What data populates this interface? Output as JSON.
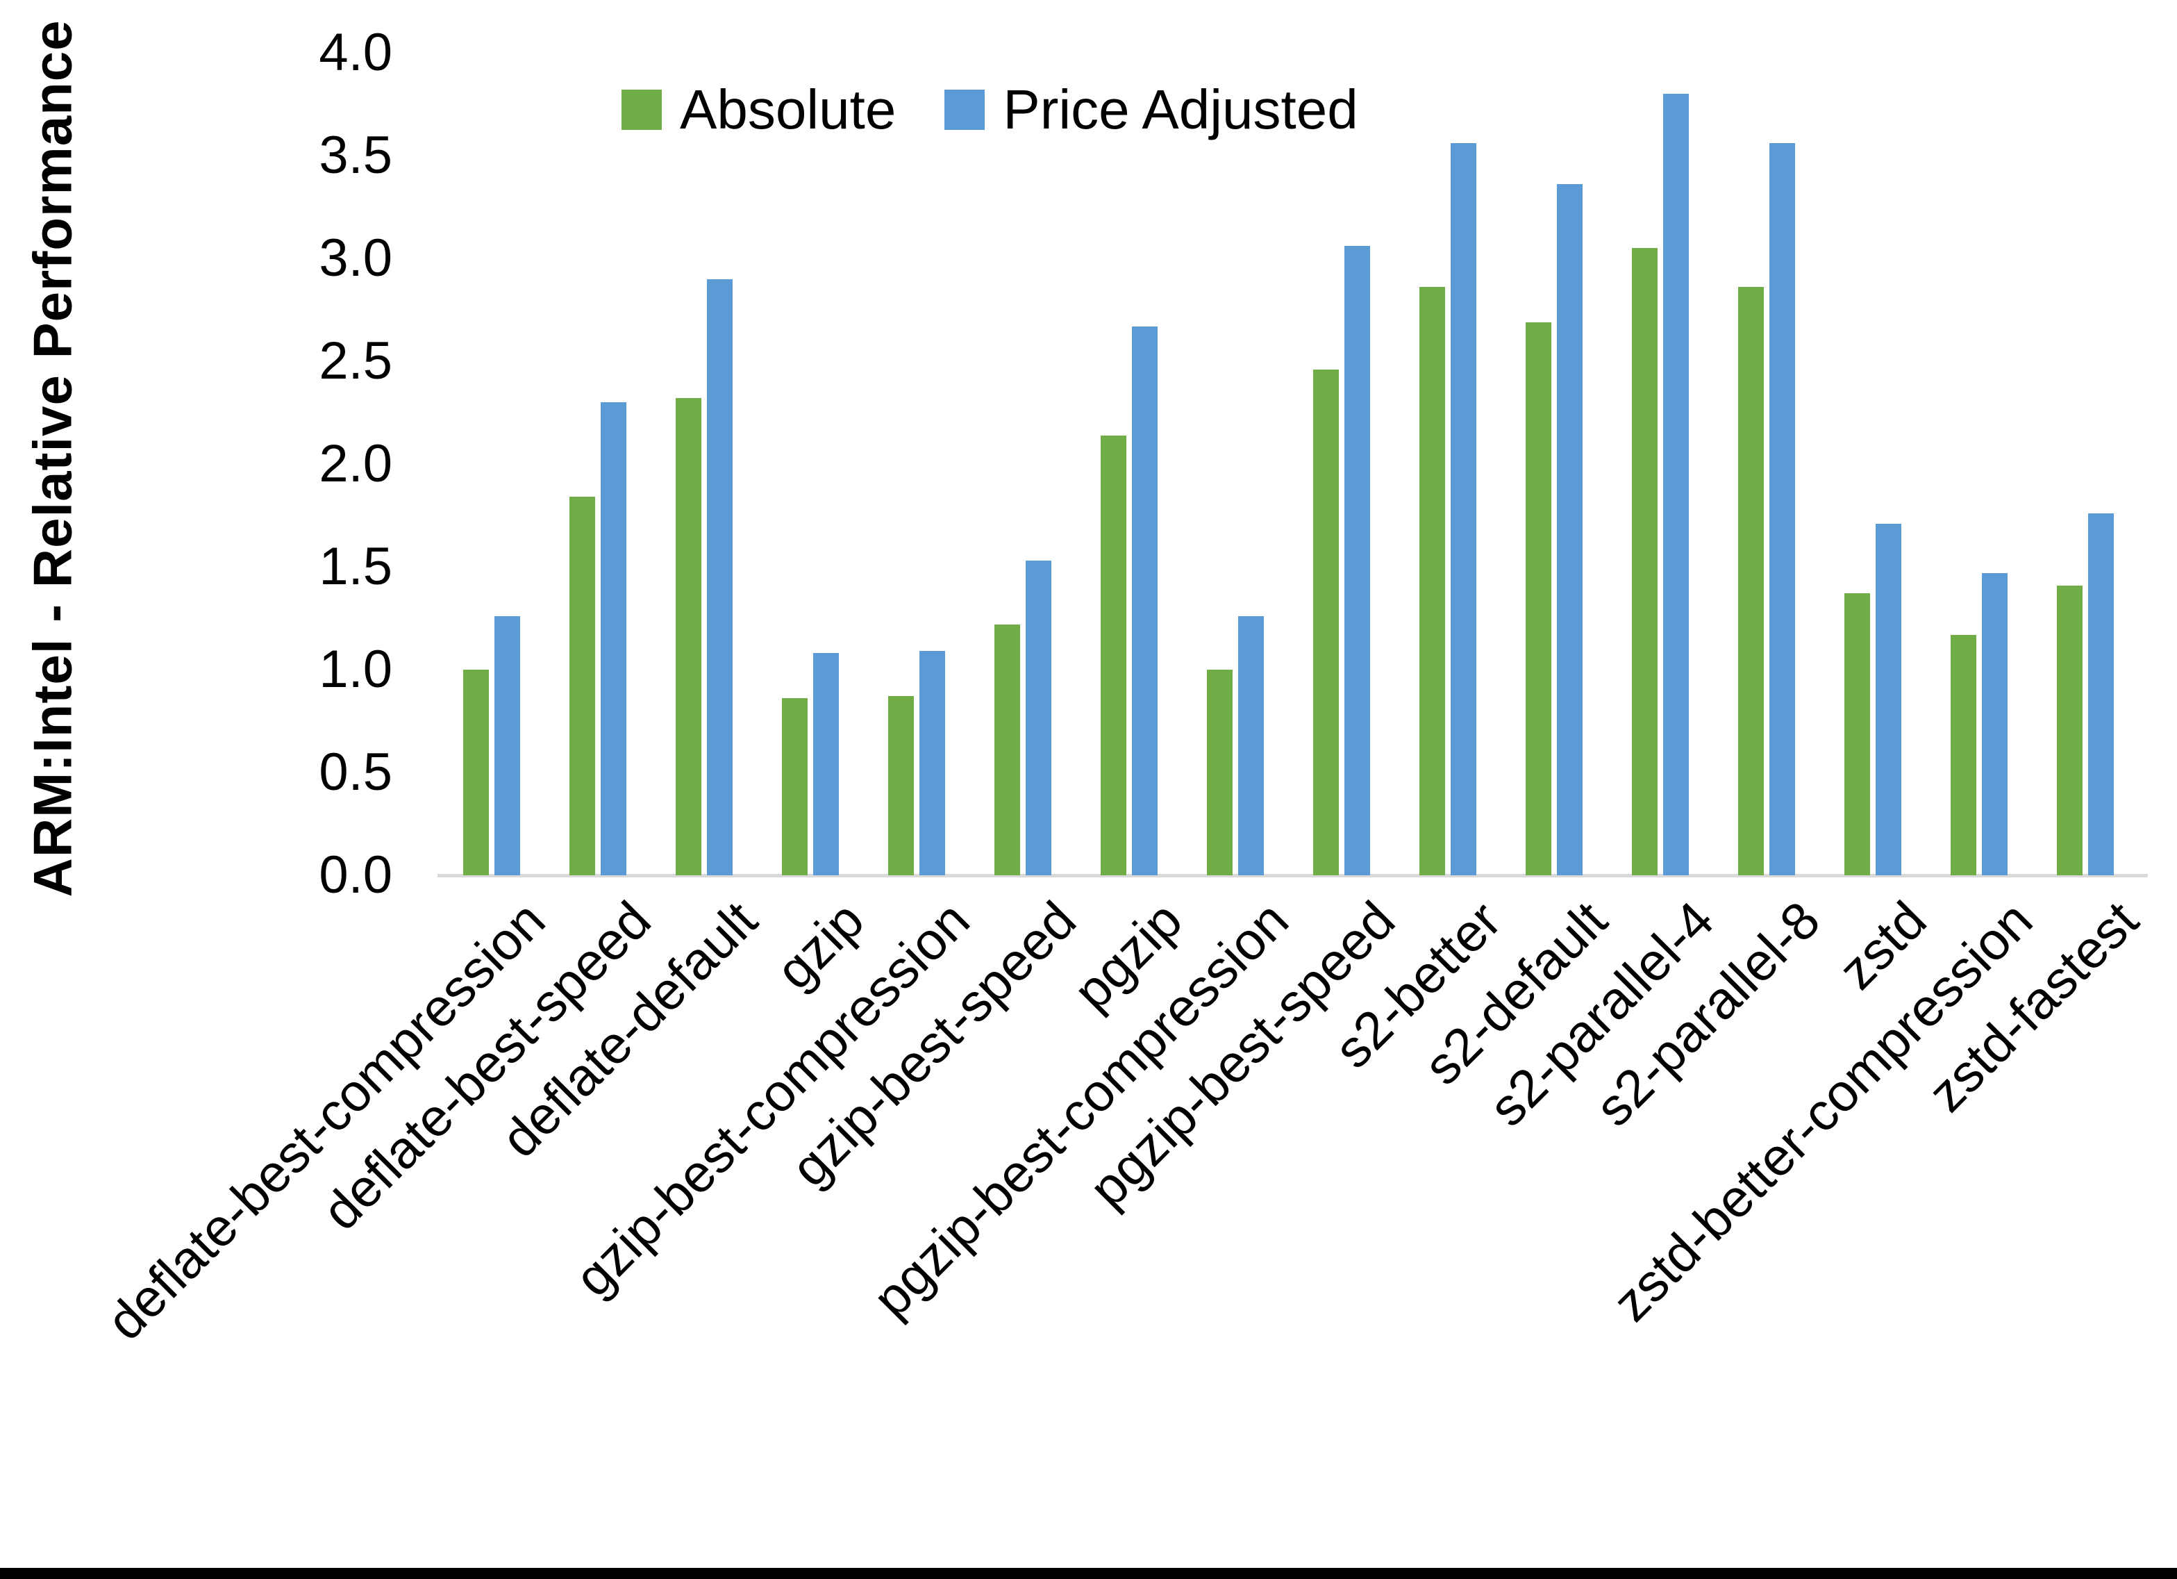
{
  "chart_data": {
    "type": "bar",
    "title": "",
    "xlabel": "",
    "ylabel": "ARM:Intel - Relative Performance",
    "ylim": [
      0.0,
      4.0
    ],
    "ytick_step": 0.5,
    "ytick_decimals": 1,
    "grid": false,
    "legend_position": "top-center",
    "background_color": "#FFFFFF",
    "axis_line_color": "#D9D9D9",
    "text_color": "#000000",
    "categories": [
      "deflate-best-compression",
      "deflate-best-speed",
      "deflate-default",
      "gzip",
      "gzip-best-compression",
      "gzip-best-speed",
      "pgzip",
      "pgzip-best-compression",
      "pgzip-best-speed",
      "s2-better",
      "s2-default",
      "s2-parallel-4",
      "s2-parallel-8",
      "zstd",
      "zstd-better-compression",
      "zstd-fastest"
    ],
    "series": [
      {
        "name": "Absolute",
        "color": "#70AD47",
        "values": [
          1.0,
          1.84,
          2.32,
          0.86,
          0.87,
          1.22,
          2.14,
          1.0,
          2.46,
          2.86,
          2.69,
          3.05,
          2.86,
          1.37,
          1.17,
          1.41
        ]
      },
      {
        "name": "Price Adjusted",
        "color": "#5B9BD5",
        "values": [
          1.26,
          2.3,
          2.9,
          1.08,
          1.09,
          1.53,
          2.67,
          1.26,
          3.06,
          3.56,
          3.36,
          3.8,
          3.56,
          1.71,
          1.47,
          1.76
        ]
      }
    ]
  }
}
